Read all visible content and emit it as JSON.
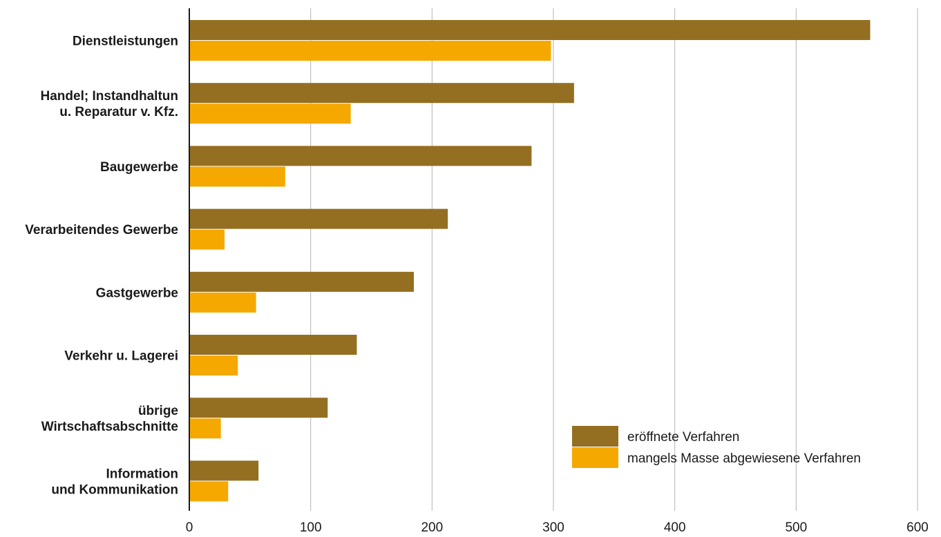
{
  "chart_data": {
    "type": "bar",
    "orientation": "horizontal",
    "categories": [
      [
        "Dienstleistungen"
      ],
      [
        "Handel; Instandhaltun",
        "u. Reparatur v. Kfz."
      ],
      [
        "Baugewerbe"
      ],
      [
        "Verarbeitendes Gewerbe"
      ],
      [
        "Gastgewerbe"
      ],
      [
        "Verkehr u. Lagerei"
      ],
      [
        "übrige",
        "Wirtschaftsabschnitte"
      ],
      [
        "Information",
        "und Kommunikation"
      ]
    ],
    "series": [
      {
        "name": "eröffnete Verfahren",
        "color": "#946f22",
        "values": [
          561,
          317,
          282,
          213,
          185,
          138,
          114,
          57
        ]
      },
      {
        "name": "mangels Masse abgewiesene Verfahren",
        "color": "#f5a800",
        "values": [
          298,
          133,
          79,
          29,
          55,
          40,
          26,
          32
        ]
      }
    ],
    "xlim": [
      0,
      600
    ],
    "xticks": [
      0,
      100,
      200,
      300,
      400,
      500,
      600
    ],
    "grid": true,
    "legend_position": "bottom-right",
    "title": "",
    "xlabel": "",
    "ylabel": ""
  }
}
